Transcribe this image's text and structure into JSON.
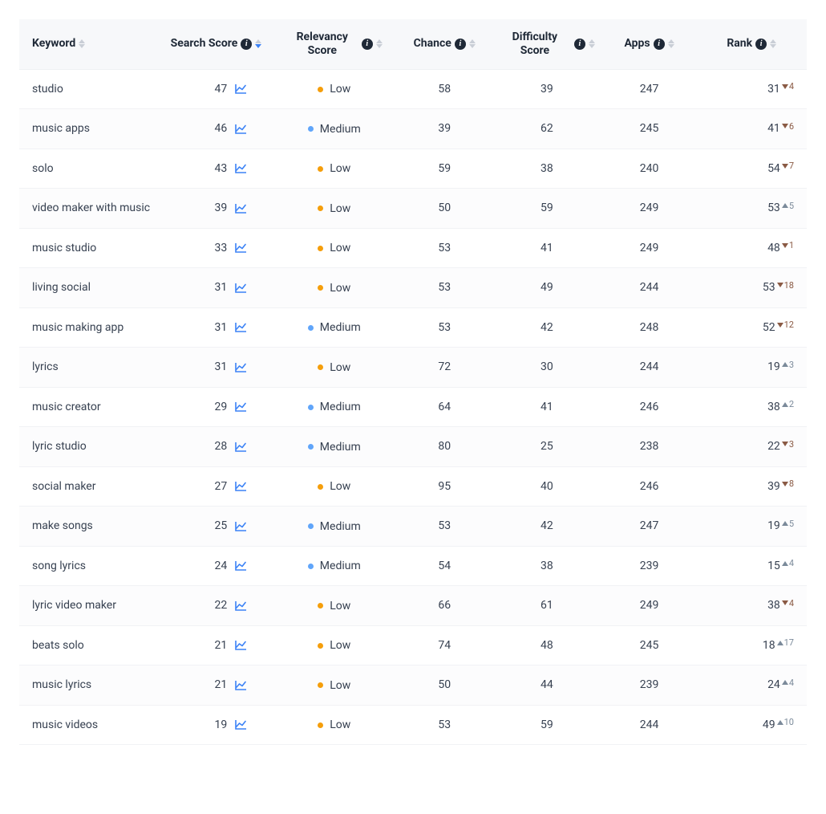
{
  "colors": {
    "header_bg": "#f7f8fa",
    "row_border": "#f1f2f5",
    "text": "#374151",
    "info_bg": "#1f2937",
    "chart_icon": "#3b82f6",
    "sort_inactive": "#c9ced6",
    "sort_active": "#3b82f6",
    "relevancy_low": "#f59e0b",
    "relevancy_medium": "#60a5fa",
    "rank_down": "#8a5a44",
    "rank_up": "#7b8a9a"
  },
  "columns": [
    {
      "key": "keyword",
      "label": "Keyword",
      "info": false,
      "sort": "neutral",
      "align": "left"
    },
    {
      "key": "search",
      "label": "Search Score",
      "info": true,
      "sort": "desc",
      "align": "center"
    },
    {
      "key": "relevancy",
      "label": "Relevancy Score",
      "info": true,
      "sort": "neutral",
      "align": "center"
    },
    {
      "key": "chance",
      "label": "Chance",
      "info": true,
      "sort": "neutral",
      "align": "center",
      "break": true
    },
    {
      "key": "difficulty",
      "label": "Difficulty Score",
      "info": true,
      "sort": "neutral",
      "align": "center"
    },
    {
      "key": "apps",
      "label": "Apps",
      "info": true,
      "sort": "neutral",
      "align": "center"
    },
    {
      "key": "rank",
      "label": "Rank",
      "info": true,
      "sort": "neutral",
      "align": "center"
    }
  ],
  "relevancy_labels": {
    "low": "Low",
    "medium": "Medium"
  },
  "rows": [
    {
      "keyword": "studio",
      "search": 47,
      "relevancy": "low",
      "chance": 58,
      "difficulty": 39,
      "apps": 247,
      "rank": 31,
      "delta": 4,
      "dir": "down"
    },
    {
      "keyword": "music apps",
      "search": 46,
      "relevancy": "medium",
      "chance": 39,
      "difficulty": 62,
      "apps": 245,
      "rank": 41,
      "delta": 6,
      "dir": "down"
    },
    {
      "keyword": "solo",
      "search": 43,
      "relevancy": "low",
      "chance": 59,
      "difficulty": 38,
      "apps": 240,
      "rank": 54,
      "delta": 7,
      "dir": "down"
    },
    {
      "keyword": "video maker with music",
      "search": 39,
      "relevancy": "low",
      "chance": 50,
      "difficulty": 59,
      "apps": 249,
      "rank": 53,
      "delta": 5,
      "dir": "up"
    },
    {
      "keyword": "music studio",
      "search": 33,
      "relevancy": "low",
      "chance": 53,
      "difficulty": 41,
      "apps": 249,
      "rank": 48,
      "delta": 1,
      "dir": "down"
    },
    {
      "keyword": "living social",
      "search": 31,
      "relevancy": "low",
      "chance": 53,
      "difficulty": 49,
      "apps": 244,
      "rank": 53,
      "delta": 18,
      "dir": "down"
    },
    {
      "keyword": "music making app",
      "search": 31,
      "relevancy": "medium",
      "chance": 53,
      "difficulty": 42,
      "apps": 248,
      "rank": 52,
      "delta": 12,
      "dir": "down"
    },
    {
      "keyword": "lyrics",
      "search": 31,
      "relevancy": "low",
      "chance": 72,
      "difficulty": 30,
      "apps": 244,
      "rank": 19,
      "delta": 3,
      "dir": "up"
    },
    {
      "keyword": "music creator",
      "search": 29,
      "relevancy": "medium",
      "chance": 64,
      "difficulty": 41,
      "apps": 246,
      "rank": 38,
      "delta": 2,
      "dir": "up"
    },
    {
      "keyword": "lyric studio",
      "search": 28,
      "relevancy": "medium",
      "chance": 80,
      "difficulty": 25,
      "apps": 238,
      "rank": 22,
      "delta": 3,
      "dir": "down"
    },
    {
      "keyword": "social maker",
      "search": 27,
      "relevancy": "low",
      "chance": 95,
      "difficulty": 40,
      "apps": 246,
      "rank": 39,
      "delta": 8,
      "dir": "down"
    },
    {
      "keyword": "make songs",
      "search": 25,
      "relevancy": "medium",
      "chance": 53,
      "difficulty": 42,
      "apps": 247,
      "rank": 19,
      "delta": 5,
      "dir": "up"
    },
    {
      "keyword": "song lyrics",
      "search": 24,
      "relevancy": "medium",
      "chance": 54,
      "difficulty": 38,
      "apps": 239,
      "rank": 15,
      "delta": 4,
      "dir": "up"
    },
    {
      "keyword": "lyric video maker",
      "search": 22,
      "relevancy": "low",
      "chance": 66,
      "difficulty": 61,
      "apps": 249,
      "rank": 38,
      "delta": 4,
      "dir": "down"
    },
    {
      "keyword": "beats solo",
      "search": 21,
      "relevancy": "low",
      "chance": 74,
      "difficulty": 48,
      "apps": 245,
      "rank": 18,
      "delta": 17,
      "dir": "up"
    },
    {
      "keyword": "music lyrics",
      "search": 21,
      "relevancy": "low",
      "chance": 50,
      "difficulty": 44,
      "apps": 239,
      "rank": 24,
      "delta": 4,
      "dir": "up"
    },
    {
      "keyword": "music videos",
      "search": 19,
      "relevancy": "low",
      "chance": 53,
      "difficulty": 59,
      "apps": 244,
      "rank": 49,
      "delta": 10,
      "dir": "up"
    }
  ]
}
